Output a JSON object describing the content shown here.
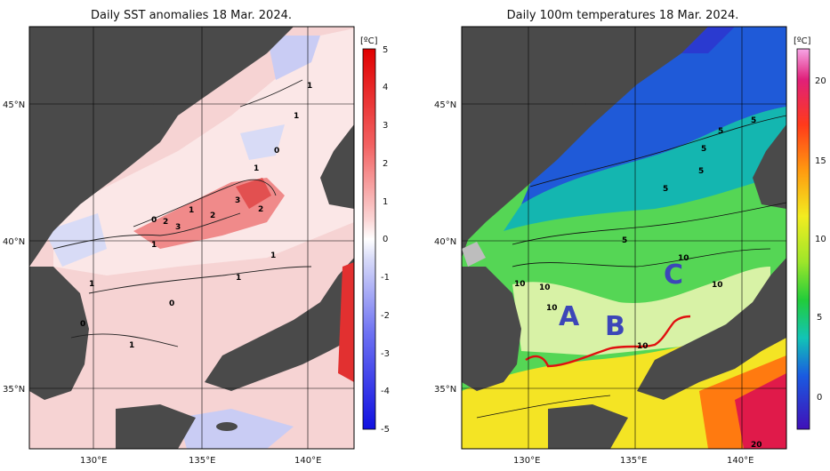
{
  "left_panel": {
    "title": "Daily SST anomalies 18 Mar. 2024.",
    "unit": "[ºC]",
    "colorbar_ticks": [
      "5",
      "4",
      "3",
      "2",
      "1",
      "0",
      "-1",
      "-2",
      "-3",
      "-4",
      "-5"
    ],
    "lat_labels": [
      "45°N",
      "40°N",
      "35°N"
    ],
    "lon_labels": [
      "130°E",
      "135°E",
      "140°E"
    ],
    "contour_labels": [
      "1",
      "0",
      "1",
      "1",
      "2",
      "3",
      "2",
      "2",
      "3",
      "0",
      "1",
      "1",
      "1",
      "1",
      "0",
      "1",
      "0",
      "1"
    ]
  },
  "right_panel": {
    "title": "Daily 100m temperatures 18 Mar. 2024.",
    "unit": "[ºC]",
    "colorbar_ticks": [
      "20",
      "15",
      "10",
      "5",
      "0"
    ],
    "lat_labels": [
      "45°N",
      "40°N",
      "35°N"
    ],
    "lon_labels": [
      "130°E",
      "135°E",
      "140°E"
    ],
    "contour_labels": [
      "5",
      "5",
      "5",
      "5",
      "5",
      "5",
      "10",
      "10",
      "10",
      "10",
      "10",
      "10",
      "20"
    ],
    "regions": [
      "A",
      "B",
      "C"
    ]
  },
  "colors": {
    "land": "#4a4a4a",
    "sea_ice_grey": "#bdbdbd",
    "front_line": "#e01010",
    "region_letters": "#3c46b8"
  }
}
